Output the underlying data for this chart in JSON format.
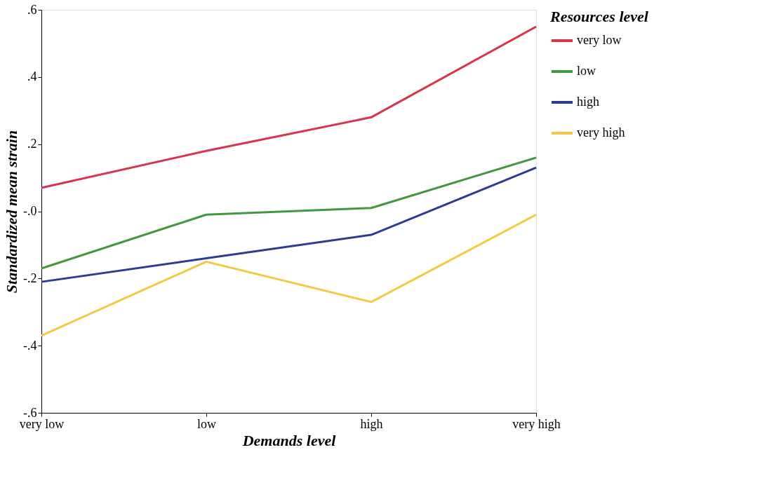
{
  "chart_data": {
    "type": "line",
    "xlabel": "Demands level",
    "ylabel": "Standardized mean strain",
    "legend_title": "Resources level",
    "categories": [
      "very low",
      "low",
      "high",
      "very high"
    ],
    "series": [
      {
        "name": "very low",
        "color": "#d9344a",
        "values": [
          0.07,
          0.18,
          0.28,
          0.55
        ]
      },
      {
        "name": "low",
        "color": "#3f9a3f",
        "values": [
          -0.17,
          -0.01,
          0.01,
          0.16
        ]
      },
      {
        "name": "high",
        "color": "#2b3c96",
        "values": [
          -0.21,
          -0.14,
          -0.07,
          0.13
        ]
      },
      {
        "name": "very high",
        "color": "#f3c842",
        "values": [
          -0.37,
          -0.15,
          -0.27,
          -0.01
        ]
      }
    ],
    "ylim": [
      -0.6,
      0.6
    ],
    "yticks": [
      {
        "value": -0.6,
        "label": "-.6"
      },
      {
        "value": -0.4,
        "label": "-.4"
      },
      {
        "value": -0.2,
        "label": "-.2"
      },
      {
        "value": 0,
        "label": "-.0"
      },
      {
        "value": 0.2,
        "label": ".2"
      },
      {
        "value": 0.4,
        "label": ".4"
      },
      {
        "value": 0.6,
        "label": ".6"
      }
    ],
    "grid": false,
    "legend": "right",
    "marker": "none",
    "line_style": "solid"
  }
}
